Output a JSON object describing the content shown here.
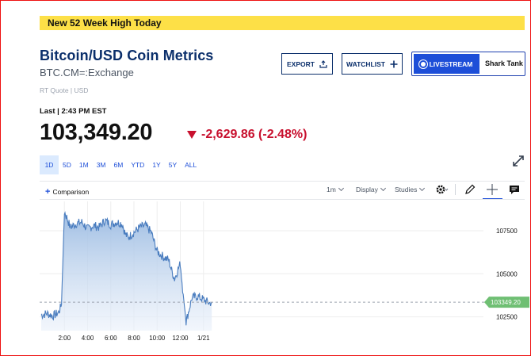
{
  "banner": "New 52 Week High Today",
  "header": {
    "title": "Bitcoin/USD Coin Metrics",
    "symbol": "BTC.CM=:Exchange",
    "quote_info": "RT Quote | USD"
  },
  "buttons": {
    "export": "EXPORT",
    "watchlist": "WATCHLIST",
    "livestream": "LIVESTREAM",
    "livestream_show": "Shark Tank"
  },
  "quote": {
    "last_label": "Last | 2:43 PM EST",
    "price": "103,349.20",
    "change": "-2,629.86 (-2.48%)",
    "direction": "down",
    "down_color": "#c8102e"
  },
  "ranges": [
    "1D",
    "5D",
    "1M",
    "3M",
    "6M",
    "YTD",
    "1Y",
    "5Y",
    "ALL"
  ],
  "active_range": "1D",
  "toolbar": {
    "comparison": "Comparison",
    "interval": "1m",
    "display": "Display",
    "studies": "Studies"
  },
  "icons": [
    "export-icon",
    "plus-icon",
    "expand-icon",
    "gear-icon",
    "pencil-icon",
    "crosshair-icon",
    "comment-icon"
  ],
  "chart_data": {
    "type": "area",
    "x_labels": [
      "2:00",
      "4:00",
      "6:00",
      "8:00",
      "10:00",
      "12:00",
      "1/21"
    ],
    "y_ticks": [
      102500,
      105000,
      107500
    ],
    "ylim": [
      101700,
      109200
    ],
    "grid": true,
    "last_value_label": "103349.20",
    "line_color": "#4a7dbf",
    "x": [
      "0:00",
      "0:30",
      "1:00",
      "1:30",
      "1:45",
      "2:00",
      "2:15",
      "2:30",
      "3:00",
      "3:30",
      "4:00",
      "4:30",
      "5:00",
      "5:30",
      "6:00",
      "6:30",
      "7:00",
      "7:15",
      "7:30",
      "8:00",
      "8:30",
      "9:00",
      "9:15",
      "9:30",
      "10:00",
      "10:30",
      "11:00",
      "11:15",
      "11:30",
      "12:00",
      "12:15",
      "12:30",
      "13:00",
      "13:30",
      "14:00",
      "14:30",
      "14:43"
    ],
    "y": [
      102600,
      102700,
      102550,
      102750,
      103200,
      108600,
      108200,
      107700,
      107900,
      108000,
      107600,
      107800,
      107700,
      108100,
      107850,
      108000,
      107900,
      107300,
      107100,
      107400,
      107700,
      107800,
      107600,
      107400,
      106300,
      106000,
      105800,
      105200,
      104700,
      105600,
      103800,
      102200,
      103600,
      103700,
      103500,
      103300,
      103349.2
    ]
  }
}
